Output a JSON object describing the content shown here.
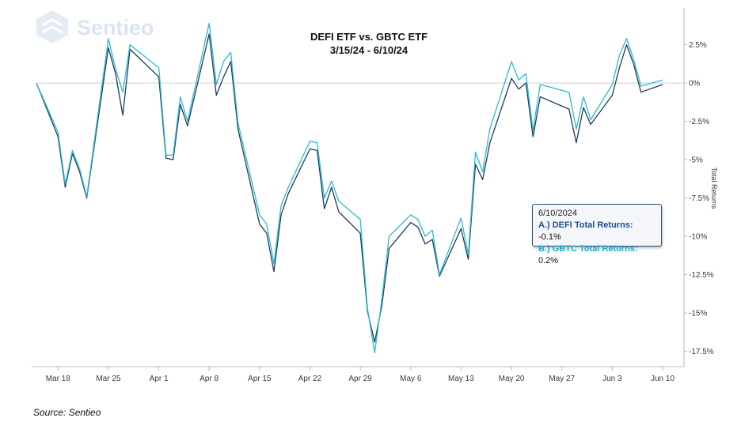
{
  "logo": {
    "text": "Sentieo",
    "icon": "sentieo-logo-icon"
  },
  "source": "Source: Sentieo",
  "tooltip": {
    "date": "6/10/2024",
    "a_label": "A.) DEFI Total Returns:",
    "a_value": "-0.1%",
    "b_label": "B.) GBTC Total Returns:",
    "b_value": "0.2%"
  },
  "chart_data": {
    "type": "line",
    "title": "DEFI ETF vs. GBTC ETF",
    "subtitle": "3/15/24 - 6/10/24",
    "xlabel": "",
    "ylabel": "Total Returns",
    "ylim": [
      -18.5,
      4.9
    ],
    "grid": false,
    "legend": "none",
    "y_ticks": [
      2.5,
      0,
      -2.5,
      -5,
      -7.5,
      -10,
      -12.5,
      -15,
      -17.5
    ],
    "y_tick_labels": [
      "2.5%",
      "0%",
      "-2.5%",
      "-5%",
      "-7.5%",
      "-10%",
      "-12.5%",
      "-15%",
      "-17.5%"
    ],
    "x_ticks": [
      "2024-03-18",
      "2024-03-25",
      "2024-04-01",
      "2024-04-08",
      "2024-04-15",
      "2024-04-22",
      "2024-04-29",
      "2024-05-06",
      "2024-05-13",
      "2024-05-20",
      "2024-05-27",
      "2024-06-03",
      "2024-06-10"
    ],
    "x_tick_labels": [
      "Mar 18",
      "Mar 25",
      "Apr 1",
      "Apr 8",
      "Apr 15",
      "Apr 22",
      "Apr 29",
      "May 6",
      "May 13",
      "May 20",
      "May 27",
      "Jun 3",
      "Jun 10"
    ],
    "x": [
      "2024-03-15",
      "2024-03-18",
      "2024-03-19",
      "2024-03-20",
      "2024-03-21",
      "2024-03-22",
      "2024-03-25",
      "2024-03-26",
      "2024-03-27",
      "2024-03-28",
      "2024-04-01",
      "2024-04-02",
      "2024-04-03",
      "2024-04-04",
      "2024-04-05",
      "2024-04-08",
      "2024-04-09",
      "2024-04-10",
      "2024-04-11",
      "2024-04-12",
      "2024-04-15",
      "2024-04-16",
      "2024-04-17",
      "2024-04-18",
      "2024-04-19",
      "2024-04-22",
      "2024-04-23",
      "2024-04-24",
      "2024-04-25",
      "2024-04-26",
      "2024-04-29",
      "2024-04-30",
      "2024-05-01",
      "2024-05-02",
      "2024-05-03",
      "2024-05-06",
      "2024-05-07",
      "2024-05-08",
      "2024-05-09",
      "2024-05-10",
      "2024-05-13",
      "2024-05-14",
      "2024-05-15",
      "2024-05-16",
      "2024-05-17",
      "2024-05-20",
      "2024-05-21",
      "2024-05-22",
      "2024-05-23",
      "2024-05-24",
      "2024-05-28",
      "2024-05-29",
      "2024-05-30",
      "2024-05-31",
      "2024-06-03",
      "2024-06-04",
      "2024-06-05",
      "2024-06-06",
      "2024-06-07",
      "2024-06-10"
    ],
    "series": [
      {
        "name": "DEFI",
        "color": "#1f3a5f",
        "values": [
          0.0,
          -3.5,
          -6.8,
          -4.6,
          -5.8,
          -7.5,
          2.3,
          0.6,
          -2.1,
          2.2,
          0.4,
          -4.9,
          -5.0,
          -1.4,
          -2.8,
          3.2,
          -0.8,
          0.4,
          1.4,
          -3.0,
          -9.2,
          -9.8,
          -12.3,
          -8.6,
          -7.2,
          -4.3,
          -4.4,
          -8.2,
          -6.8,
          -8.4,
          -9.8,
          -14.9,
          -16.9,
          -14.5,
          -10.8,
          -9.1,
          -9.4,
          -10.5,
          -10.2,
          -12.6,
          -9.5,
          -11.5,
          -5.3,
          -6.3,
          -3.9,
          0.3,
          -0.4,
          0.0,
          -3.5,
          -0.9,
          -1.7,
          -3.9,
          -1.6,
          -2.7,
          -0.8,
          1.0,
          2.5,
          1.2,
          -0.6,
          -0.1
        ]
      },
      {
        "name": "GBTC",
        "color": "#2bbbcd",
        "values": [
          0.0,
          -3.2,
          -6.6,
          -4.4,
          -5.6,
          -7.4,
          2.9,
          0.9,
          -0.6,
          2.5,
          1.0,
          -4.7,
          -4.7,
          -0.9,
          -2.5,
          3.9,
          -0.1,
          1.4,
          2.0,
          -2.6,
          -8.6,
          -9.2,
          -11.8,
          -8.0,
          -6.8,
          -3.8,
          -3.9,
          -7.5,
          -6.4,
          -7.7,
          -8.9,
          -14.7,
          -17.6,
          -14.1,
          -10.0,
          -8.6,
          -8.9,
          -10.0,
          -9.6,
          -12.5,
          -8.8,
          -11.2,
          -4.5,
          -5.8,
          -3.0,
          1.4,
          0.2,
          0.6,
          -3.1,
          -0.1,
          -0.6,
          -3.0,
          -0.9,
          -2.4,
          -0.1,
          1.8,
          2.9,
          1.5,
          -0.2,
          0.2
        ]
      }
    ]
  }
}
